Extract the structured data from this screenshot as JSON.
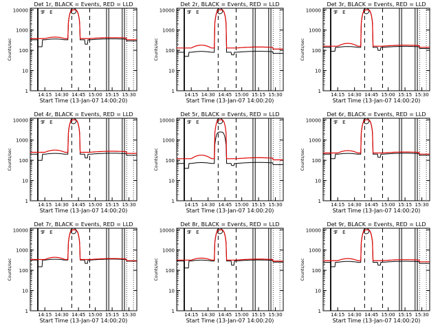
{
  "chart_data": [
    {
      "type": "line",
      "title": "Det 1r, BLACK = Events, RED = LLD",
      "ylabel": "Counts/sec",
      "xlabel": "Start Time (13-Jan-07 14:00:20)",
      "peak": 10000,
      "peak_events": 10000,
      "events": {
        "base": 330,
        "dip": 150,
        "dip2": 200
      },
      "lld": {
        "base": 380,
        "bump": 450
      },
      "markers": [
        "S",
        "F",
        "E"
      ]
    },
    {
      "type": "line",
      "title": "Det 2r, BLACK = Events, RED = LLD",
      "ylabel": "Counts/sec",
      "xlabel": "Start Time (13-Jan-07 14:00:20)",
      "peak": 10000,
      "peak_events": 10000,
      "events": {
        "base": 80,
        "dip": 50,
        "dip2": 60
      },
      "lld": {
        "base": 130,
        "bump": 180
      },
      "markers": [
        "S",
        "F",
        "E"
      ]
    },
    {
      "type": "line",
      "title": "Det 3r, BLACK = Events, RED = LLD",
      "ylabel": "Counts/sec",
      "xlabel": "Start Time (13-Jan-07 14:00:20)",
      "peak": 10000,
      "peak_events": 10000,
      "events": {
        "base": 140,
        "dip": 90,
        "dip2": 100
      },
      "lld": {
        "base": 160,
        "bump": 220
      },
      "markers": [
        "S",
        "F",
        "E"
      ]
    },
    {
      "type": "line",
      "title": "Det 4r, BLACK = Events, RED = LLD",
      "ylabel": "Counts/sec",
      "xlabel": "Start Time (13-Jan-07 14:00:20)",
      "peak": 10000,
      "peak_events": 10000,
      "events": {
        "base": 200,
        "dip": 100,
        "dip2": 130
      },
      "lld": {
        "base": 250,
        "bump": 320
      },
      "markers": [
        "S",
        "F",
        "E"
      ]
    },
    {
      "type": "line",
      "title": "Det 5r, BLACK = Events, RED = LLD",
      "ylabel": "Counts/sec",
      "xlabel": "Start Time (13-Jan-07 14:00:20)",
      "peak": 10000,
      "peak_events": 2500,
      "events": {
        "base": 70,
        "dip": 40,
        "dip2": 55
      },
      "lld": {
        "base": 120,
        "bump": 180
      },
      "markers": [
        "S",
        "F",
        "E"
      ]
    },
    {
      "type": "line",
      "title": "Det 6r, BLACK = Events, RED = LLD",
      "ylabel": "Counts/sec",
      "xlabel": "Start Time (13-Jan-07 14:00:20)",
      "peak": 10000,
      "peak_events": 10000,
      "events": {
        "base": 200,
        "dip": 120,
        "dip2": 140
      },
      "lld": {
        "base": 230,
        "bump": 300
      },
      "markers": [
        "S",
        "F",
        "E"
      ]
    },
    {
      "type": "line",
      "title": "Det 7r, BLACK = Events, RED = LLD",
      "ylabel": "Counts/sec",
      "xlabel": "Start Time (13-Jan-07 14:00:20)",
      "peak": 10000,
      "peak_events": 10000,
      "events": {
        "base": 320,
        "dip": 150,
        "dip2": 220
      },
      "lld": {
        "base": 340,
        "bump": 440
      },
      "markers": [
        "S",
        "F",
        "E"
      ]
    },
    {
      "type": "line",
      "title": "Det 8r, BLACK = Events, RED = LLD",
      "ylabel": "Counts/sec",
      "xlabel": "Start Time (13-Jan-07 14:00:20)",
      "peak": 10000,
      "peak_events": 10000,
      "events": {
        "base": 290,
        "dip": 130,
        "dip2": 180
      },
      "lld": {
        "base": 320,
        "bump": 400
      },
      "markers": [
        "S",
        "F",
        "E"
      ]
    },
    {
      "type": "line",
      "title": "Det 9r, BLACK = Events, RED = LLD",
      "ylabel": "Counts/sec",
      "xlabel": "Start Time (13-Jan-07 14:00:20)",
      "peak": 10000,
      "peak_events": 10000,
      "events": {
        "base": 250,
        "dip": 150,
        "dip2": 180
      },
      "lld": {
        "base": 300,
        "bump": 380
      },
      "markers": [
        "S",
        "F",
        "E"
      ]
    }
  ],
  "shared": {
    "x_ticks": [
      "14:15",
      "14:30",
      "14:45",
      "15:00",
      "15:15",
      "15:30"
    ],
    "y_ticks": [
      "1",
      "10",
      "100",
      "1000",
      "10000"
    ],
    "y_scale": "log",
    "ylim": [
      1,
      12000
    ],
    "series": [
      {
        "name": "Events",
        "color": "#000000"
      },
      {
        "name": "LLD",
        "color": "#e00000"
      }
    ],
    "colors": {
      "events": "#000000",
      "lld": "#e00000"
    }
  }
}
